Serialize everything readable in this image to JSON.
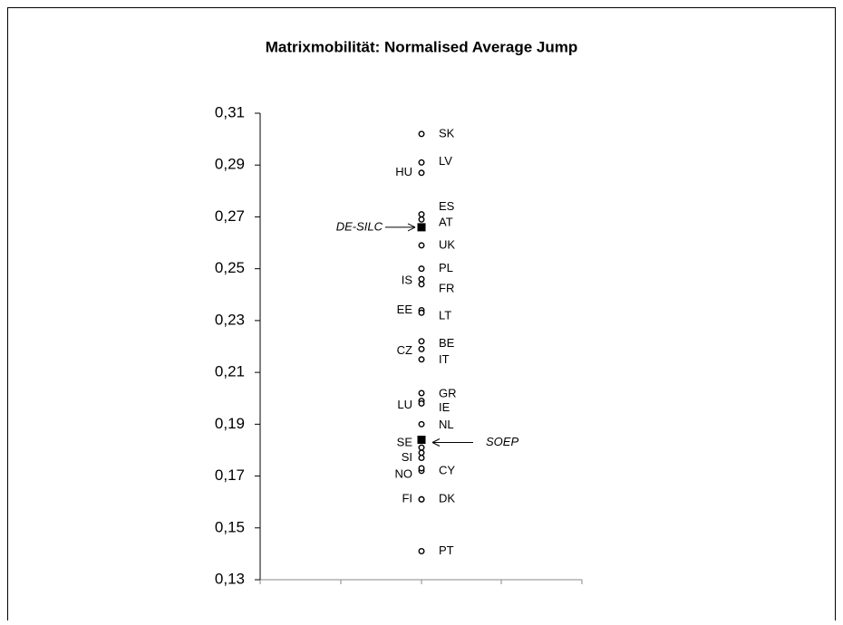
{
  "chart_data": {
    "type": "dotplot",
    "title": "Matrixmobilität: Normalised Average Jump",
    "categories": [
      "SK",
      "LV",
      "HU",
      "ES",
      "AT",
      "DE-SILC",
      "UK",
      "PL",
      "IS",
      "FR",
      "EE",
      "LT",
      "BE",
      "CZ",
      "IT",
      "GR",
      "IE",
      "LU",
      "NL",
      "SOEP",
      "SE",
      null,
      "SI",
      "NO",
      "CY",
      "FI",
      "DK",
      "PT"
    ],
    "values": [
      0.302,
      0.291,
      0.287,
      0.271,
      0.269,
      0.266,
      0.259,
      0.25,
      0.246,
      0.244,
      0.234,
      0.233,
      0.222,
      0.219,
      0.215,
      0.202,
      0.199,
      0.198,
      0.19,
      0.184,
      0.181,
      0.179,
      0.177,
      0.172,
      0.173,
      0.161,
      0.161,
      0.141
    ],
    "markers": [
      "circle",
      "circle",
      "circle",
      "circle",
      "circle",
      "square",
      "circle",
      "circle",
      "circle",
      "circle",
      "circle",
      "circle",
      "circle",
      "circle",
      "circle",
      "circle",
      "circle",
      "circle",
      "circle",
      "square",
      "circle",
      "circle",
      "circle",
      "circle",
      "circle",
      "circle",
      "circle",
      "circle"
    ],
    "ylim": [
      0.13,
      0.31
    ],
    "yticks": [
      {
        "value": 0.13,
        "label": "0,13"
      },
      {
        "value": 0.15,
        "label": "0,15"
      },
      {
        "value": 0.17,
        "label": "0,17"
      },
      {
        "value": 0.19,
        "label": "0,19"
      },
      {
        "value": 0.21,
        "label": "0,21"
      },
      {
        "value": 0.23,
        "label": "0,23"
      },
      {
        "value": 0.25,
        "label": "0,25"
      },
      {
        "value": 0.27,
        "label": "0,27"
      },
      {
        "value": 0.29,
        "label": "0,29"
      },
      {
        "value": 0.31,
        "label": "0,31"
      }
    ]
  }
}
